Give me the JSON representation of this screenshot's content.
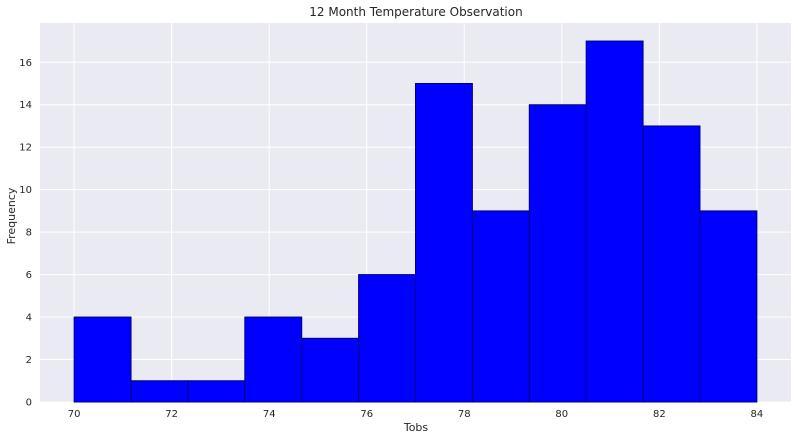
{
  "chart_data": {
    "type": "bar",
    "title": "12 Month Temperature Observation",
    "xlabel": "Tobs",
    "ylabel": "Frequency",
    "bin_edges": [
      70.0,
      71.1667,
      72.3333,
      73.5,
      74.6667,
      75.8333,
      77.0,
      78.1667,
      79.3333,
      80.5,
      81.6667,
      82.8333,
      84.0
    ],
    "values": [
      4,
      1,
      1,
      4,
      3,
      6,
      15,
      9,
      14,
      17,
      13,
      9
    ],
    "xlim": [
      69.3,
      84.7
    ],
    "ylim": [
      0,
      17.85
    ],
    "xticks": [
      70,
      72,
      74,
      76,
      78,
      80,
      82,
      84
    ],
    "yticks": [
      0,
      2,
      4,
      6,
      8,
      10,
      12,
      14,
      16
    ],
    "grid": true,
    "bar_color": "#0000ff",
    "bar_edge_color": "#000080",
    "plot_background": "#eaeaf2",
    "grid_color": "#ffffff"
  }
}
